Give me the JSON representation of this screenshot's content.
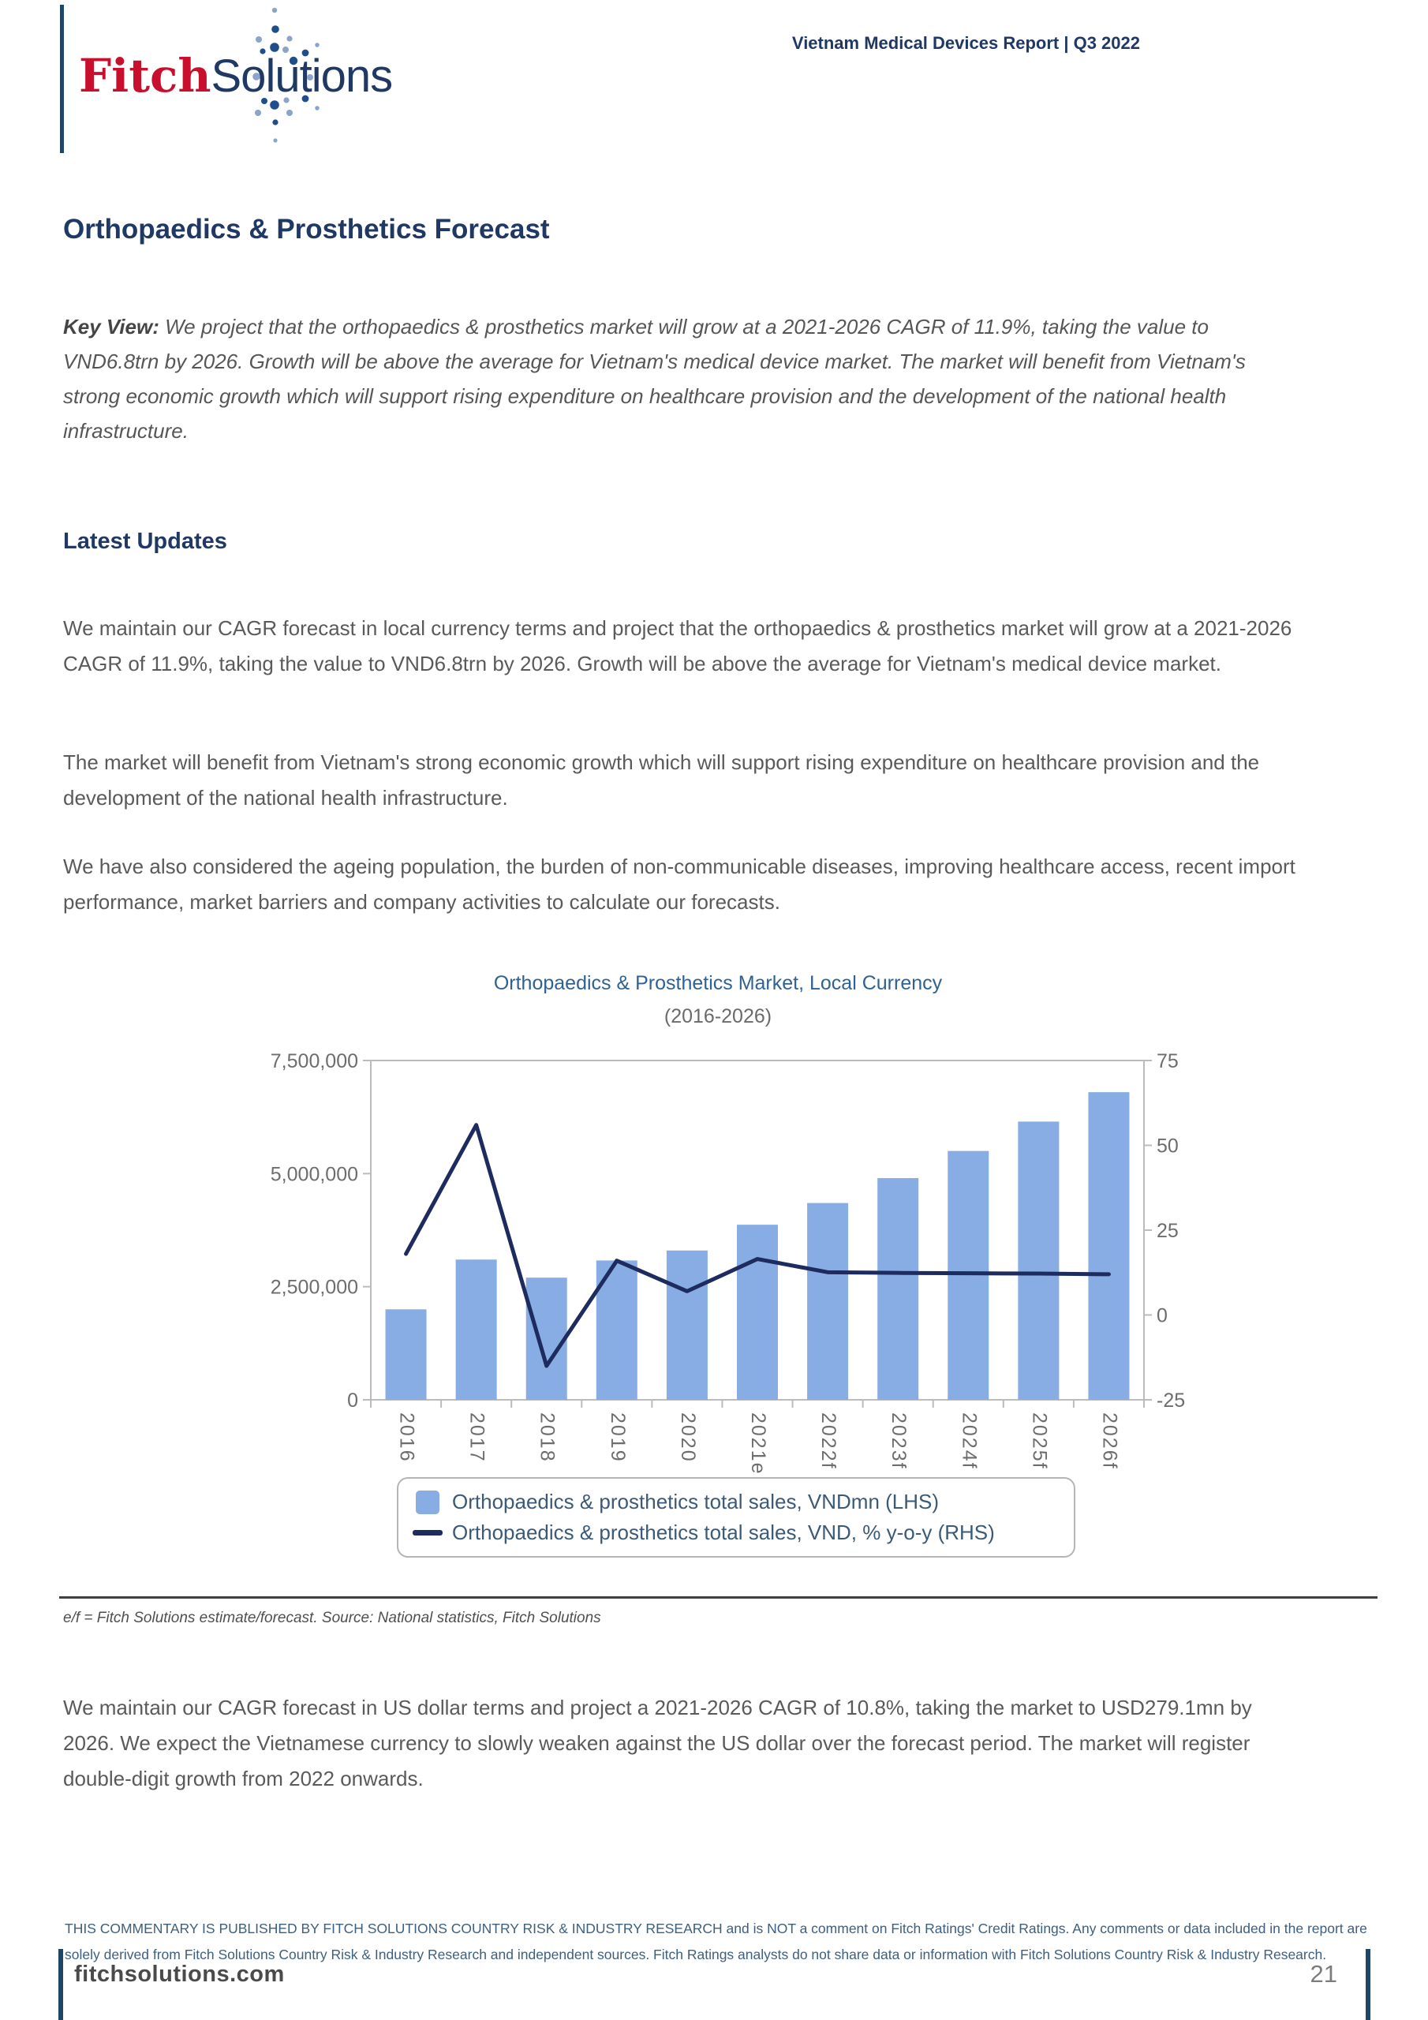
{
  "header": {
    "logo_fitch": "Fitch",
    "logo_solutions": "Solutions",
    "report_title": "Vietnam Medical Devices Report | Q3 2022"
  },
  "article": {
    "title": "Orthopaedics & Prosthetics Forecast",
    "key_view_label": "Key View:",
    "key_view_text": " We project that the orthopaedics & prosthetics market will grow at a 2021-2026 CAGR of 11.9%, taking the value to VND6.8trn by 2026. Growth will be above the average for Vietnam's medical device market. The market will benefit from Vietnam's strong economic growth which will support rising expenditure on healthcare provision and the development of the national health infrastructure.",
    "latest_updates_heading": "Latest Updates",
    "paragraphs": [
      "We maintain our CAGR forecast in local currency terms and project that the orthopaedics & prosthetics market will grow at a 2021-2026 CAGR of 11.9%, taking the value to VND6.8trn by 2026. Growth will be above the average for Vietnam's medical device market.",
      "The market will benefit from Vietnam's strong economic growth which will support rising expenditure on healthcare provision and the development of the national health infrastructure.",
      "We have also considered the ageing population, the burden of non-communicable diseases, improving healthcare access, recent import performance, market barriers and company activities to calculate our forecasts."
    ],
    "us_paragraph": "We maintain our CAGR forecast in US dollar terms and project a 2021-2026 CAGR of 10.8%, taking the market to USD279.1mn by 2026. We expect the Vietnamese currency to slowly weaken against the US dollar over the forecast period. The market will register double-digit growth from 2022 onwards."
  },
  "chart": {
    "source_note": "e/f = Fitch Solutions estimate/forecast. Source: National statistics, Fitch Solutions"
  },
  "chart_data": {
    "type": "bar",
    "title": "Orthopaedics & Prosthetics Market, Local Currency",
    "subtitle": "(2016-2026)",
    "categories": [
      "2016",
      "2017",
      "2018",
      "2019",
      "2020",
      "2021e",
      "2022f",
      "2023f",
      "2024f",
      "2025f",
      "2026f"
    ],
    "series": [
      {
        "name": "Orthopaedics & prosthetics total sales, VNDmn (LHS)",
        "type": "bar",
        "axis": "left",
        "color": "#88ade4",
        "values": [
          2000000,
          3100000,
          2700000,
          3080000,
          3300000,
          3870000,
          4350000,
          4900000,
          5500000,
          6150000,
          6800000
        ]
      },
      {
        "name": "Orthopaedics & prosthetics total sales, VND, % y-o-y (RHS)",
        "type": "line",
        "axis": "right",
        "color": "#1e2b5e",
        "values": [
          18,
          56,
          -15,
          16,
          7,
          16.5,
          12.6,
          12.4,
          12.3,
          12.2,
          12.0
        ]
      }
    ],
    "left_axis": {
      "range": [
        0,
        7500000
      ],
      "ticks": [
        0,
        2500000,
        5000000,
        7500000
      ],
      "tick_labels": [
        "0",
        "2,500,000",
        "5,000,000",
        "7,500,000"
      ]
    },
    "right_axis": {
      "range": [
        -25,
        75
      ],
      "ticks": [
        -25,
        0,
        25,
        50,
        75
      ]
    },
    "grid": false,
    "legend_position": "bottom"
  },
  "footer": {
    "disclaimer": "THIS COMMENTARY IS PUBLISHED BY FITCH SOLUTIONS COUNTRY RISK & INDUSTRY RESEARCH and is NOT a comment on Fitch Ratings' Credit Ratings. Any comments or data included in the report are solely derived from Fitch Solutions Country Risk & Industry Research and independent sources. Fitch Ratings analysts do not share data or information with Fitch Solutions Country Risk & Industry Research.",
    "website": "fitchsolutions.com",
    "page_number": "21"
  }
}
